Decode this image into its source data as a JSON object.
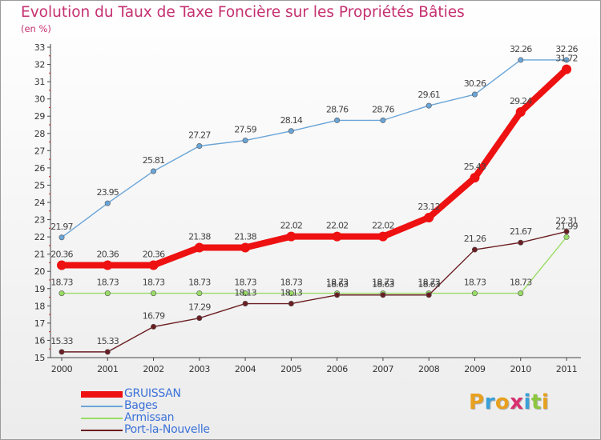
{
  "chart_data": {
    "type": "line",
    "title": "Evolution du Taux de Taxe Foncière sur les Propriétés Bâties",
    "subtitle": "(en %)",
    "x": [
      "2000",
      "2001",
      "2002",
      "2003",
      "2004",
      "2005",
      "2006",
      "2007",
      "2008",
      "2009",
      "2010",
      "2011"
    ],
    "ylim": [
      15,
      33
    ],
    "yticks": [
      15,
      16,
      17,
      18,
      19,
      20,
      21,
      22,
      23,
      24,
      25,
      26,
      27,
      28,
      29,
      30,
      31,
      32,
      33
    ],
    "grid": false,
    "legend_position": "bottom-left",
    "series": [
      {
        "name": "GRUISSAN",
        "color": "#ee1111",
        "values": [
          20.36,
          20.36,
          20.36,
          21.38,
          21.38,
          22.02,
          22.02,
          22.02,
          23.12,
          25.43,
          29.24,
          31.72
        ],
        "labels": [
          "20.36",
          "20.36",
          "20.36",
          "21.38",
          "21.38",
          "22.02",
          "22.02",
          "22.02",
          "23.12",
          "25.43",
          "29.24",
          "31.72"
        ]
      },
      {
        "name": "Bages",
        "color": "#6aa5d8",
        "values": [
          21.97,
          23.95,
          25.81,
          27.27,
          27.59,
          28.14,
          28.76,
          28.76,
          29.61,
          30.26,
          32.26,
          32.26
        ],
        "labels": [
          "21.97",
          "23.95",
          "25.81",
          "27.27",
          "27.59",
          "28.14",
          "28.76",
          "28.76",
          "29.61",
          "30.26",
          "32.26",
          "32.26"
        ]
      },
      {
        "name": "Armissan",
        "color": "#99dd66",
        "values": [
          18.73,
          18.73,
          18.73,
          18.73,
          18.73,
          18.73,
          18.73,
          18.73,
          18.73,
          18.73,
          18.73,
          21.99
        ],
        "labels": [
          "18.73",
          "18.73",
          "18.73",
          "18.73",
          "18.73",
          "18.73",
          "18.73",
          "18.73",
          "18.73",
          "18.73",
          "18.73",
          "21.99"
        ]
      },
      {
        "name": "Port-la-Nouvelle",
        "color": "#6b1e22",
        "values": [
          15.33,
          15.33,
          16.79,
          17.29,
          18.13,
          18.13,
          18.63,
          18.63,
          18.63,
          21.26,
          21.67,
          22.31
        ],
        "labels": [
          "15.33",
          "15.33",
          "16.79",
          "17.29",
          "18.13",
          "18.13",
          "18.63",
          "18.63",
          "18.63",
          "21.26",
          "21.67",
          "22.31"
        ]
      }
    ]
  },
  "logo": {
    "text": "Proxiti"
  }
}
